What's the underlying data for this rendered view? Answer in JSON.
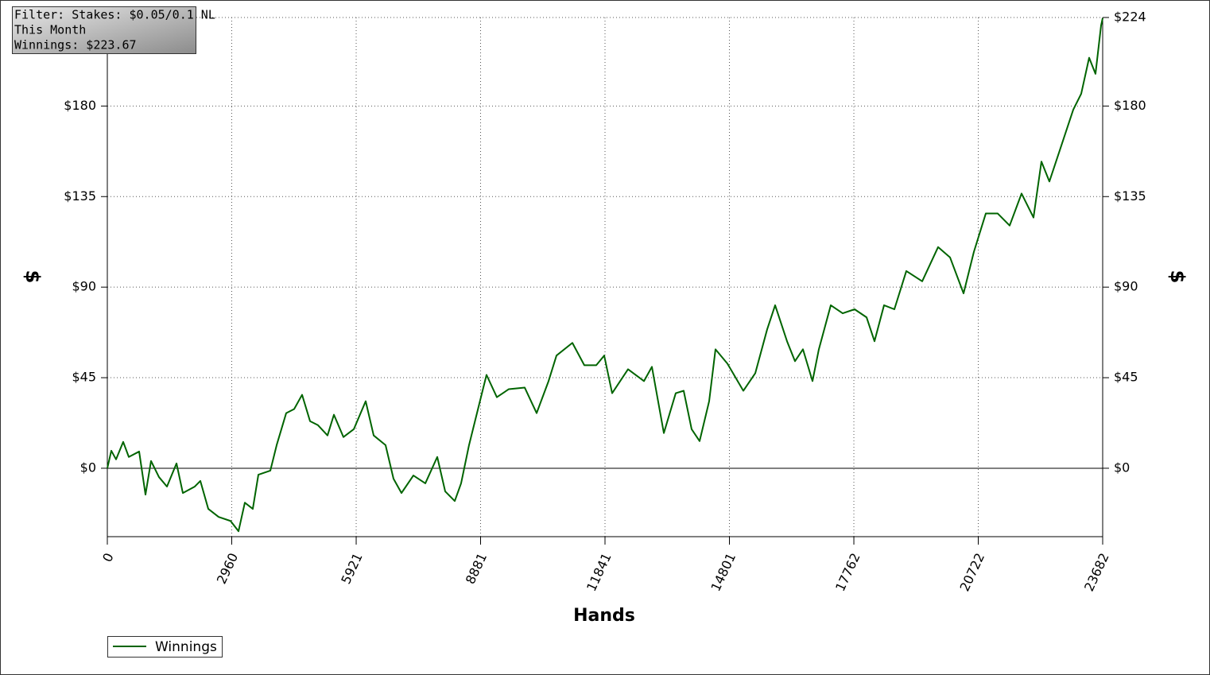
{
  "chart_data": {
    "type": "line",
    "info_box": [
      "Filter: Stakes: $0.05/0.1 NL",
      "This Month",
      "Winnings: $223.67"
    ],
    "xlabel": "Hands",
    "ylabel": "$",
    "x": [
      0,
      95,
      208,
      378,
      511,
      757,
      908,
      1040,
      1229,
      1419,
      1646,
      1797,
      2081,
      2213,
      2402,
      2648,
      2932,
      3121,
      3272,
      3461,
      3594,
      3878,
      4029,
      4256,
      4445,
      4634,
      4823,
      5012,
      5239,
      5391,
      5618,
      5864,
      6147,
      6337,
      6620,
      6809,
      6999,
      7282,
      7566,
      7850,
      8039,
      8266,
      8417,
      8606,
      8795,
      9022,
      9268,
      9552,
      9930,
      10214,
      10498,
      10687,
      11065,
      11349,
      11633,
      11822,
      12011,
      12389,
      12768,
      12957,
      13241,
      13524,
      13713,
      13902,
      14092,
      14319,
      14470,
      14754,
      15132,
      15416,
      15699,
      15889,
      16172,
      16361,
      16551,
      16778,
      16929,
      17213,
      17496,
      17780,
      18064,
      18253,
      18480,
      18726,
      19010,
      19388,
      19766,
      20050,
      20372,
      20617,
      20901,
      21185,
      21469,
      21752,
      22036,
      22225,
      22414,
      22698,
      22982,
      23171,
      23360,
      23511,
      23644,
      23682
    ],
    "series": [
      {
        "name": "Winnings",
        "color": "#006400",
        "values": [
          0,
          8.7,
          4.4,
          13.1,
          5.6,
          8.3,
          -13.1,
          3.6,
          -4.4,
          -9.1,
          2.4,
          -12.3,
          -9.1,
          -6.3,
          -20.2,
          -24.2,
          -26.2,
          -31.3,
          -17.1,
          -20.2,
          -3.2,
          -1.2,
          11.5,
          27.4,
          29.4,
          36.5,
          23.4,
          21.4,
          16.3,
          26.6,
          15.5,
          19.4,
          33.3,
          16.3,
          11.5,
          -5.2,
          -12.3,
          -3.6,
          -7.5,
          5.6,
          -11.5,
          -16.3,
          -7.5,
          11.5,
          27.4,
          46.4,
          35.3,
          39.3,
          40.1,
          27.4,
          43.3,
          56.0,
          62.3,
          51.2,
          51.2,
          56.0,
          37.3,
          49.2,
          43.3,
          50.4,
          17.5,
          37.3,
          38.5,
          19.4,
          13.5,
          33.3,
          59.1,
          52.0,
          38.5,
          47.2,
          69.0,
          81.0,
          63.1,
          53.2,
          59.1,
          43.3,
          59.1,
          81.0,
          77.0,
          79.0,
          75.0,
          63.1,
          81.0,
          79.0,
          98.0,
          92.9,
          109.9,
          104.8,
          86.9,
          107.5,
          126.6,
          126.6,
          120.6,
          136.5,
          124.6,
          152.4,
          142.5,
          160.3,
          178.2,
          186.1,
          204.0,
          196.0,
          220.0,
          223.67
        ]
      }
    ],
    "xlim": [
      0,
      23682
    ],
    "xticks": [
      0,
      2960,
      5921,
      8881,
      11841,
      14801,
      17762,
      20722,
      23682
    ],
    "ylim": [
      -34,
      224
    ],
    "yticks": [
      {
        "value": 0,
        "label": "$0"
      },
      {
        "value": 45,
        "label": "$45"
      },
      {
        "value": 90,
        "label": "$90"
      },
      {
        "value": 135,
        "label": "$135"
      },
      {
        "value": 180,
        "label": "$180"
      },
      {
        "value": 224,
        "label": "$224"
      }
    ],
    "grid": true,
    "legend": "bottom-left"
  }
}
